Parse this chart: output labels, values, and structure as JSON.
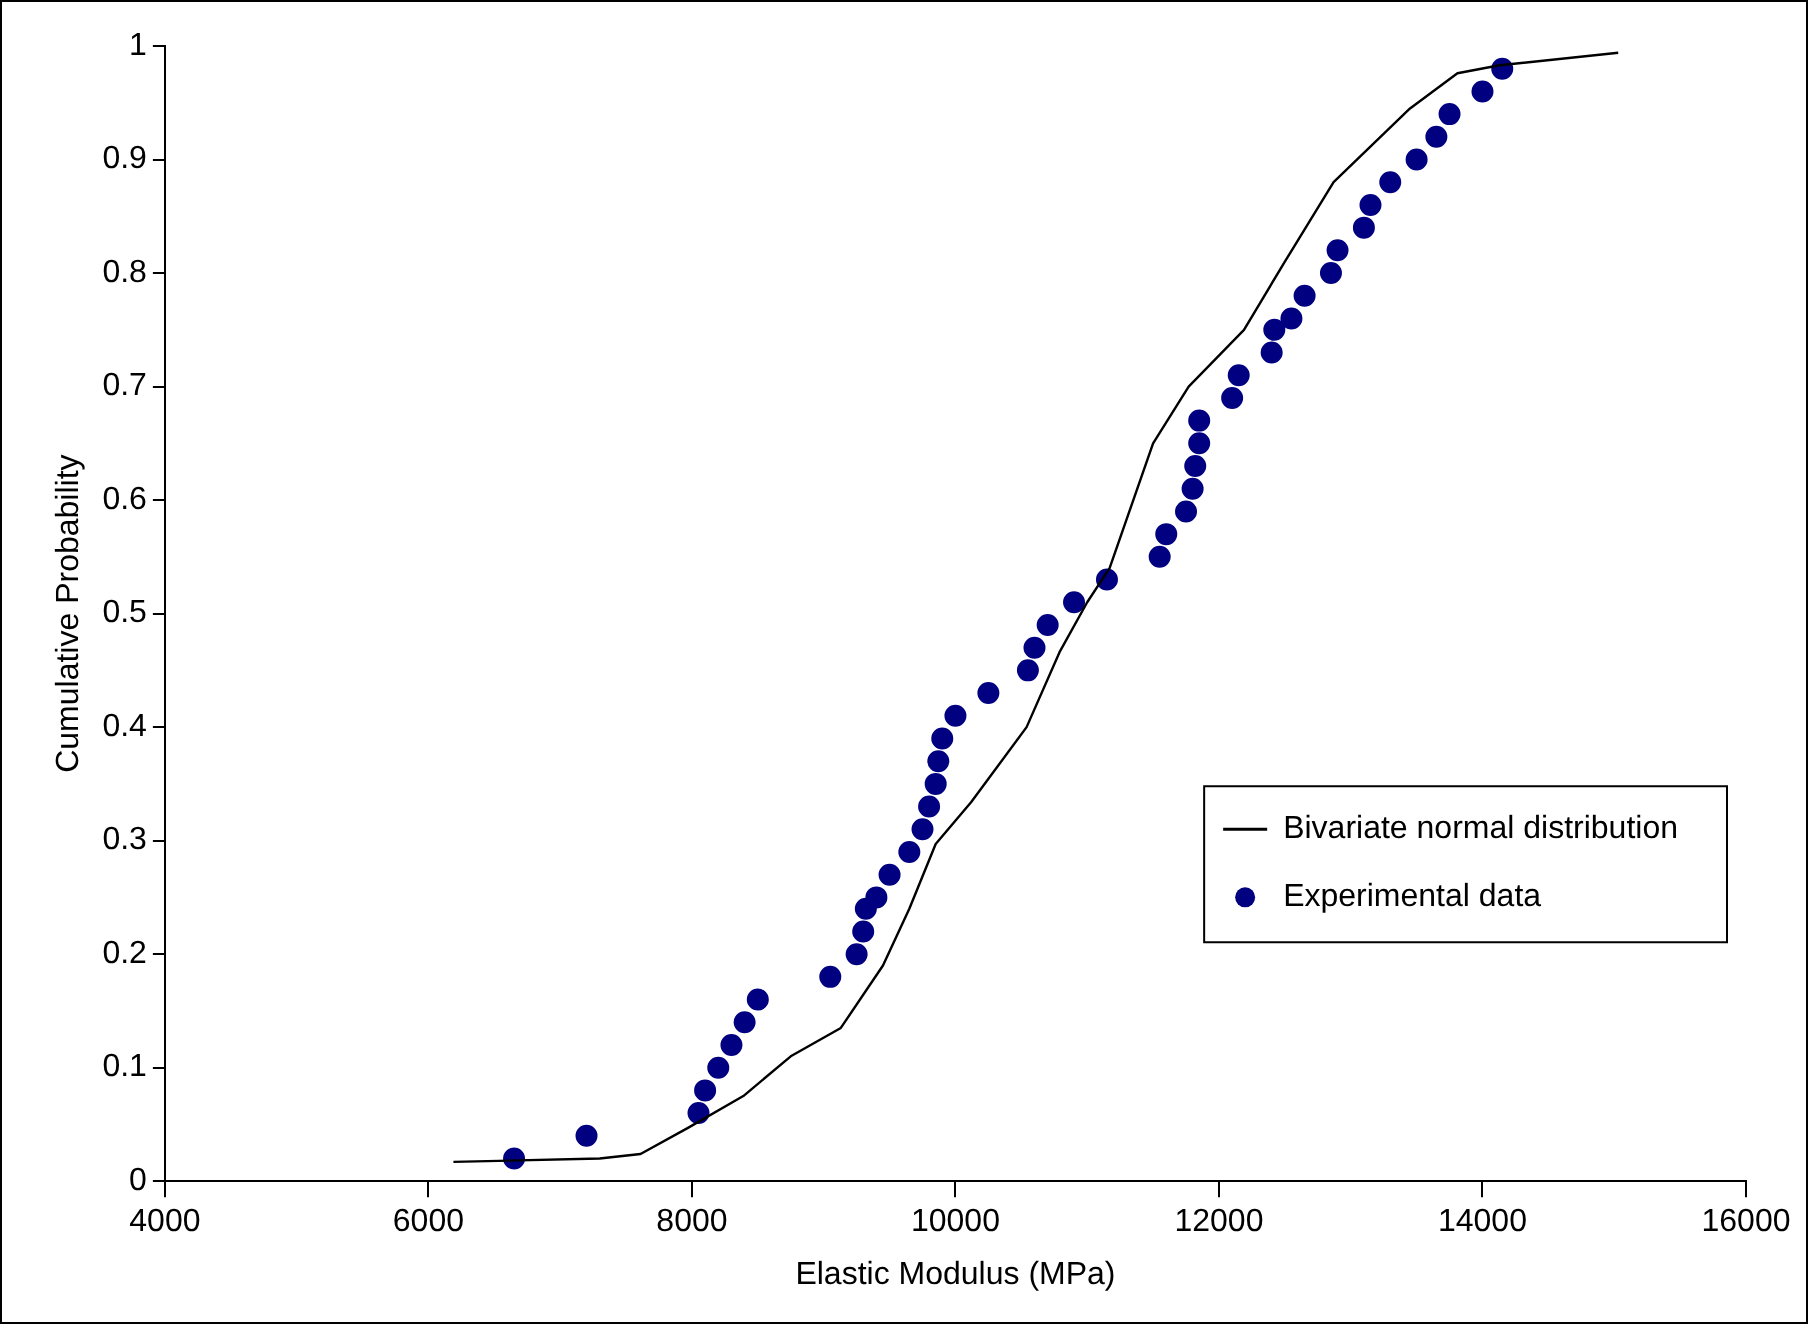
{
  "chart_data": {
    "type": "scatter",
    "xlabel": "Elastic Modulus (MPa)",
    "ylabel": "Cumulative Probability",
    "xlim": [
      4000,
      16000
    ],
    "xticks": [
      4000,
      6000,
      8000,
      10000,
      12000,
      14000,
      16000
    ],
    "ylim": [
      0,
      1
    ],
    "yticks": [
      0,
      0.1,
      0.2,
      0.3,
      0.4,
      0.5,
      0.6,
      0.7,
      0.8,
      0.9,
      1
    ],
    "grid": false,
    "legend": "right",
    "series": [
      {
        "name": "Bivariate normal distribution",
        "type": "line",
        "color": "#000000",
        "marker": "none",
        "line_style": "solid",
        "x": [
          6190,
          7300,
          7610,
          7970,
          8390,
          8750,
          9130,
          9450,
          9650,
          9850,
          10120,
          10540,
          10790,
          11000,
          11170,
          11320,
          11500,
          11770,
          12190,
          12500,
          12870,
          13450,
          13810,
          14130,
          15030
        ],
        "values": [
          0.017,
          0.02,
          0.024,
          0.047,
          0.075,
          0.11,
          0.135,
          0.19,
          0.24,
          0.297,
          0.334,
          0.4,
          0.466,
          0.51,
          0.54,
          0.59,
          0.65,
          0.7,
          0.75,
          0.81,
          0.88,
          0.945,
          0.976,
          0.983,
          0.994
        ]
      },
      {
        "name": "Experimental data",
        "type": "scatter",
        "color": "#000080",
        "marker": "circle",
        "x": [
          6650,
          7200,
          8050,
          8100,
          8200,
          8300,
          8400,
          8500,
          9050,
          9250,
          9300,
          9320,
          9400,
          9500,
          9650,
          9750,
          9800,
          9850,
          9870,
          9900,
          10000,
          10250,
          10550,
          10600,
          10700,
          10900,
          11150,
          11550,
          11600,
          11750,
          11800,
          11820,
          11850,
          11850,
          12100,
          12150,
          12400,
          12420,
          12550,
          12650,
          12850,
          12900,
          13100,
          13150,
          13300,
          13500,
          13650,
          13750,
          14000,
          14150
        ],
        "values": [
          0.02,
          0.04,
          0.06,
          0.08,
          0.1,
          0.12,
          0.14,
          0.16,
          0.18,
          0.2,
          0.22,
          0.24,
          0.25,
          0.27,
          0.29,
          0.31,
          0.33,
          0.35,
          0.37,
          0.39,
          0.41,
          0.43,
          0.45,
          0.47,
          0.49,
          0.51,
          0.53,
          0.55,
          0.57,
          0.59,
          0.61,
          0.63,
          0.65,
          0.67,
          0.69,
          0.71,
          0.73,
          0.75,
          0.76,
          0.78,
          0.8,
          0.82,
          0.84,
          0.86,
          0.88,
          0.9,
          0.92,
          0.94,
          0.96,
          0.98
        ]
      }
    ]
  }
}
